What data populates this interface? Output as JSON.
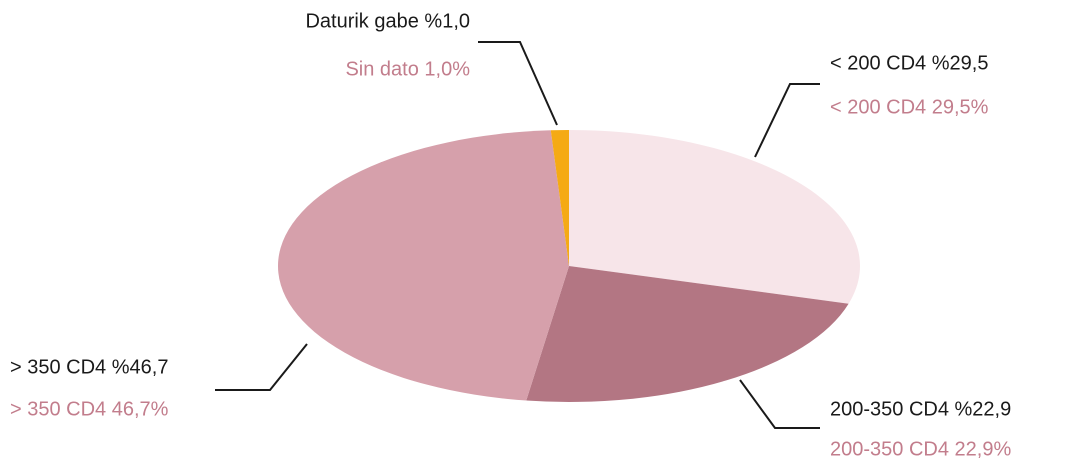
{
  "chart_data": {
    "type": "pie",
    "values": [
      29.5,
      22.9,
      46.7,
      1.0
    ],
    "colors": [
      "#f7e5e9",
      "#b37683",
      "#d6a0ab",
      "#f5aa14"
    ],
    "value_labels": [
      "< 200 CD4 %29,5",
      "200-350 CD4 %22,9",
      "> 350 CD4 %46,7",
      "Daturik gabe %1,0"
    ],
    "value_labels_es": [
      "< 200 CD4 29,5%",
      "200-350 CD4 22,9%",
      "> 350 CD4 46,7%",
      "Sin dato 1,0%"
    ]
  }
}
